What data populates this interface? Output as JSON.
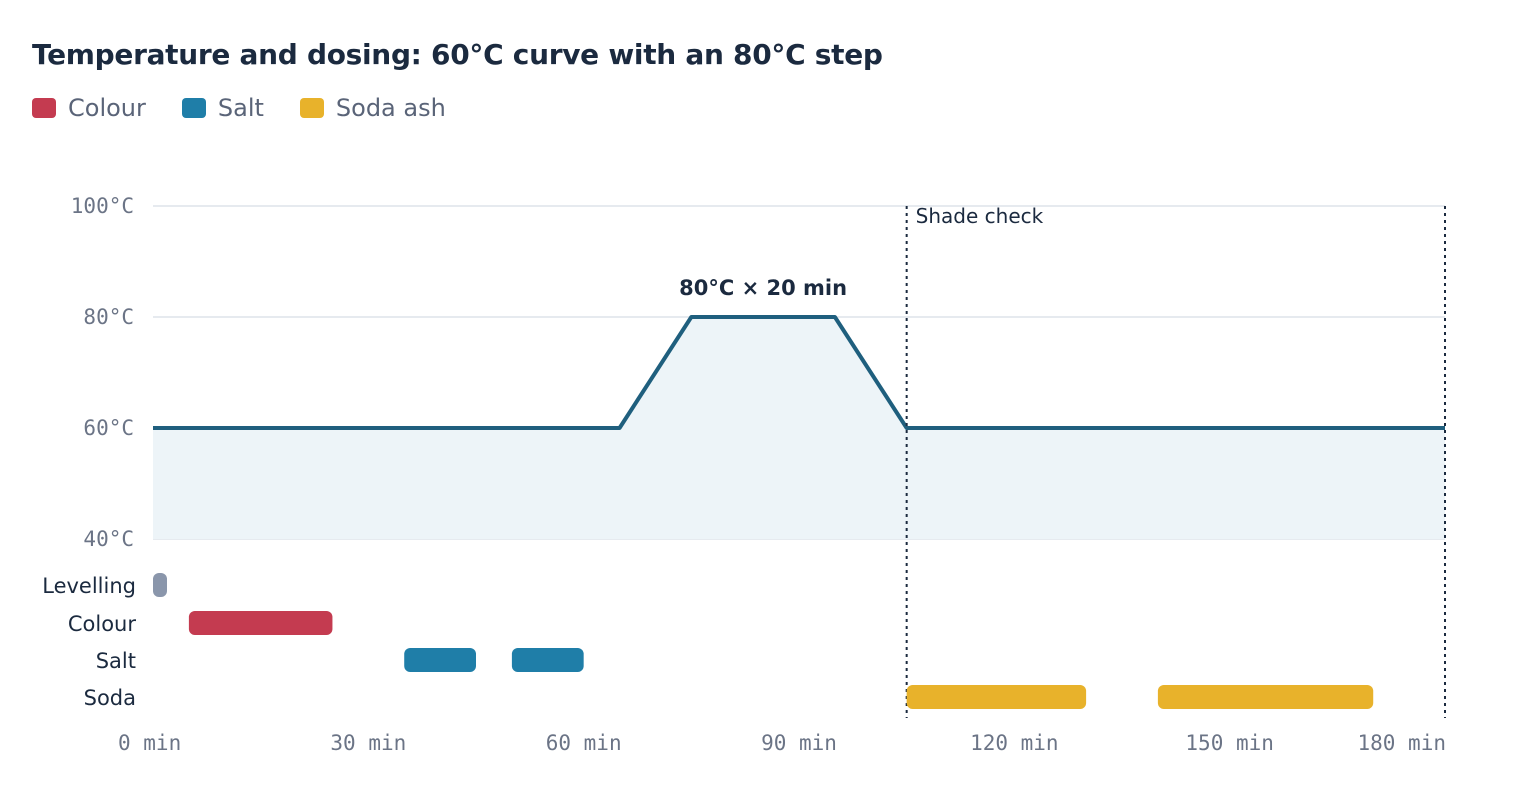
{
  "title": "Temperature and dosing: 60°C curve with an 80°C step",
  "legend": [
    {
      "label": "Colour",
      "color": "#c43b50"
    },
    {
      "label": "Salt",
      "color": "#1f7ea8"
    },
    {
      "label": "Soda ash",
      "color": "#e8b22b"
    }
  ],
  "chart_data": {
    "type": "line",
    "title": "Temperature and dosing: 60°C curve with an 80°C step",
    "x_unit": "min",
    "xlim": [
      0,
      180
    ],
    "ylim": [
      40,
      100
    ],
    "x_ticks": [
      0,
      30,
      60,
      90,
      120,
      150,
      180
    ],
    "x_tick_labels": [
      "0 min",
      "30 min",
      "60 min",
      "90 min",
      "120 min",
      "150 min",
      "180 min"
    ],
    "y_ticks": [
      40,
      60,
      80,
      100
    ],
    "y_tick_labels": [
      "40°C",
      "60°C",
      "80°C",
      "100°C"
    ],
    "grid": true,
    "line_color": "#1f5f7e",
    "fill_color": "#edf4f8",
    "temperature": {
      "x": [
        0,
        65,
        75,
        95,
        105,
        180
      ],
      "y": [
        60,
        60,
        80,
        80,
        60,
        60
      ]
    },
    "step_annotation": "80°C × 20 min",
    "markers": [
      {
        "x": 105,
        "label": "Shade check"
      },
      {
        "x": 180,
        "label": ""
      }
    ],
    "lanes": [
      {
        "label": "Levelling",
        "color": "#8a96ab",
        "bars": [
          [
            0,
            1
          ]
        ]
      },
      {
        "label": "Colour",
        "color": "#c43b50",
        "bars": [
          [
            5,
            25
          ]
        ]
      },
      {
        "label": "Salt",
        "color": "#1f7ea8",
        "bars": [
          [
            35,
            45
          ],
          [
            50,
            60
          ]
        ]
      },
      {
        "label": "Soda",
        "color": "#e8b22b",
        "bars": [
          [
            105,
            130
          ],
          [
            140,
            170
          ]
        ]
      }
    ]
  }
}
